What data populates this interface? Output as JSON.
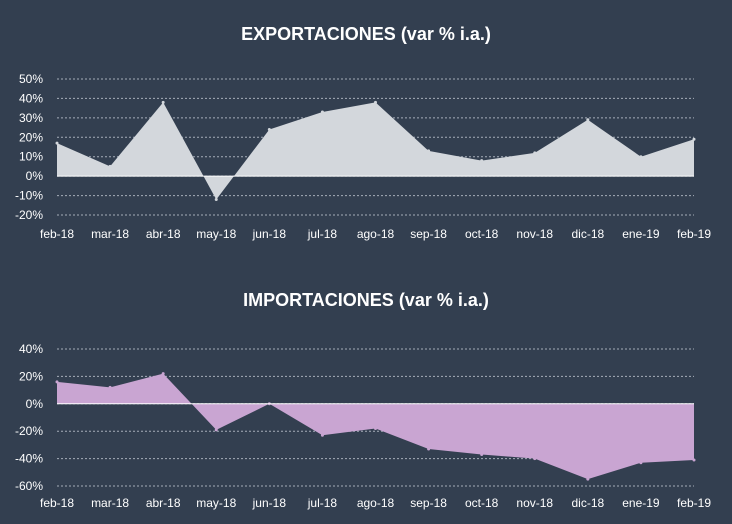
{
  "chart_data": [
    {
      "type": "area",
      "title": "EXPORTACIONES (var % i.a.)",
      "categories": [
        "feb-18",
        "mar-18",
        "abr-18",
        "may-18",
        "jun-18",
        "jul-18",
        "ago-18",
        "sep-18",
        "oct-18",
        "nov-18",
        "dic-18",
        "ene-19",
        "feb-19"
      ],
      "series": [
        {
          "values": [
            17,
            5,
            38,
            -12,
            24,
            33,
            38,
            13,
            8,
            12,
            29,
            10,
            19
          ]
        }
      ],
      "ylim": [
        -20,
        50
      ],
      "yticks": [
        -20,
        -10,
        0,
        10,
        20,
        30,
        40,
        50
      ],
      "ytick_labels": [
        "-20%",
        "-10%",
        "0%",
        "10%",
        "20%",
        "30%",
        "40%",
        "50%"
      ],
      "grid": true,
      "fill_color": "#d3d7dc"
    },
    {
      "type": "area",
      "title": "IMPORTACIONES (var % i.a.)",
      "categories": [
        "feb-18",
        "mar-18",
        "abr-18",
        "may-18",
        "jun-18",
        "jul-18",
        "ago-18",
        "sep-18",
        "oct-18",
        "nov-18",
        "dic-18",
        "ene-19",
        "feb-19"
      ],
      "series": [
        {
          "values": [
            16,
            12,
            22,
            -19,
            0,
            -23,
            -18,
            -33,
            -37,
            -40,
            -55,
            -43,
            -41
          ]
        }
      ],
      "ylim": [
        -60,
        40
      ],
      "yticks": [
        -60,
        -40,
        -20,
        0,
        20,
        40
      ],
      "ytick_labels": [
        "-60%",
        "-40%",
        "-20%",
        "0%",
        "20%",
        "40%"
      ],
      "grid": true,
      "fill_color": "#c9a5d2"
    }
  ]
}
